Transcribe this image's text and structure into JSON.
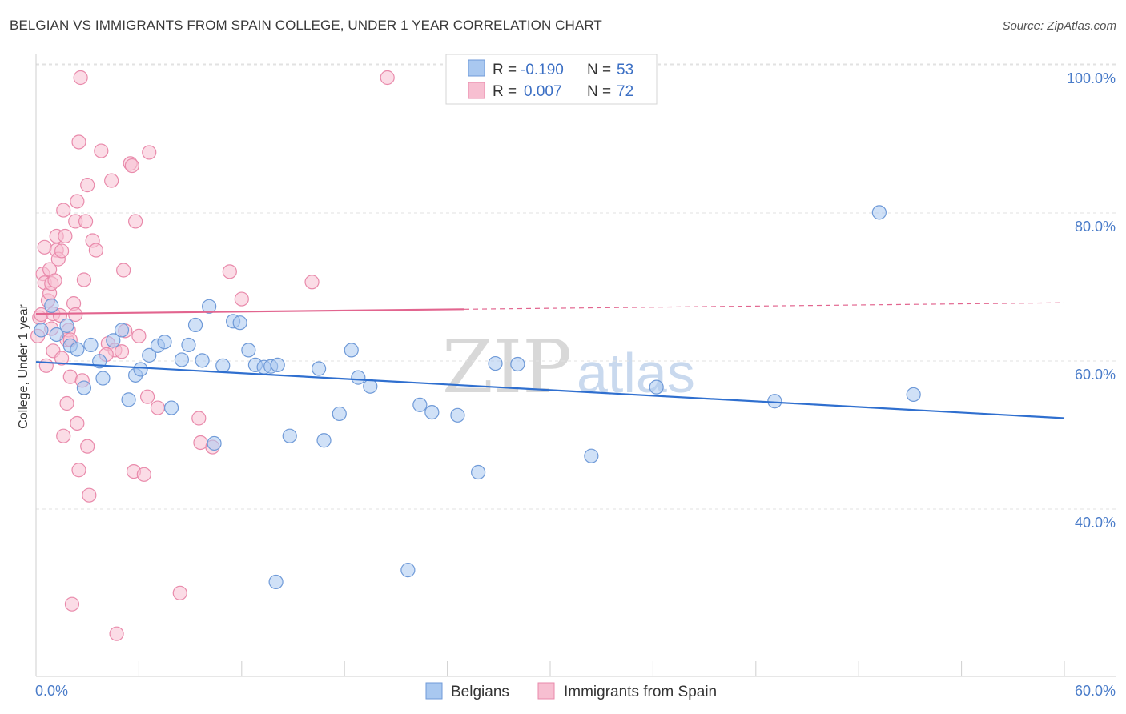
{
  "header": {
    "title": "BELGIAN VS IMMIGRANTS FROM SPAIN COLLEGE, UNDER 1 YEAR CORRELATION CHART",
    "source": "Source: ZipAtlas.com"
  },
  "watermark": {
    "zip": "ZIP",
    "atlas": "atlas"
  },
  "colors": {
    "belgians_fill": "#a9c8f0",
    "belgians_stroke": "#6f9ad8",
    "belgians_line": "#2f6fcf",
    "spain_fill": "#f7bfd1",
    "spain_stroke": "#e98aab",
    "spain_line": "#e2658f",
    "tick_label": "#4a7cc9",
    "grid": "#e2e2e2"
  },
  "legend": {
    "rows": [
      {
        "r_label": "R =",
        "r_value": "-0.190",
        "n_label": "N =",
        "n_value": "53"
      },
      {
        "r_label": "R =",
        "r_value": "0.007",
        "n_label": "N =",
        "n_value": "72"
      }
    ]
  },
  "chart_data": {
    "type": "scatter",
    "title": "BELGIAN VS IMMIGRANTS FROM SPAIN COLLEGE, UNDER 1 YEAR CORRELATION CHART",
    "xlabel": "",
    "ylabel": "College, Under 1 year",
    "xlim": [
      0,
      60
    ],
    "ylim": [
      20,
      104
    ],
    "x_tick_labels": [
      "0.0%",
      "60.0%"
    ],
    "y_ticks": [
      {
        "value": 100,
        "label": "100.0%"
      },
      {
        "value": 80,
        "label": "80.0%"
      },
      {
        "value": 60,
        "label": "60.0%"
      },
      {
        "value": 40,
        "label": "40.0%"
      }
    ],
    "series": [
      {
        "name": "Belgians",
        "r": -0.19,
        "n": 53,
        "trend": {
          "x": [
            0,
            60
          ],
          "y": [
            61.6,
            54.0
          ],
          "dashed_from": null
        },
        "points": [
          [
            0.3,
            65.9
          ],
          [
            0.9,
            69.2
          ],
          [
            1.2,
            65.3
          ],
          [
            1.8,
            66.5
          ],
          [
            2.0,
            63.8
          ],
          [
            2.4,
            63.3
          ],
          [
            2.8,
            58.1
          ],
          [
            3.2,
            63.9
          ],
          [
            3.7,
            61.7
          ],
          [
            3.9,
            59.4
          ],
          [
            4.5,
            64.5
          ],
          [
            5.0,
            65.9
          ],
          [
            5.4,
            56.5
          ],
          [
            5.8,
            59.8
          ],
          [
            6.1,
            60.6
          ],
          [
            6.6,
            62.5
          ],
          [
            7.1,
            63.8
          ],
          [
            7.5,
            64.3
          ],
          [
            7.9,
            55.4
          ],
          [
            8.5,
            61.9
          ],
          [
            8.9,
            63.9
          ],
          [
            9.3,
            66.6
          ],
          [
            9.7,
            61.8
          ],
          [
            10.1,
            69.1
          ],
          [
            10.4,
            50.6
          ],
          [
            10.9,
            61.1
          ],
          [
            11.5,
            67.1
          ],
          [
            11.9,
            66.9
          ],
          [
            12.4,
            63.2
          ],
          [
            12.8,
            61.2
          ],
          [
            13.3,
            60.9
          ],
          [
            13.7,
            61.0
          ],
          [
            14.1,
            61.2
          ],
          [
            14.0,
            31.9
          ],
          [
            14.8,
            51.6
          ],
          [
            16.5,
            60.7
          ],
          [
            16.8,
            51.0
          ],
          [
            17.7,
            54.6
          ],
          [
            18.4,
            63.2
          ],
          [
            18.8,
            59.5
          ],
          [
            19.5,
            58.3
          ],
          [
            21.7,
            33.5
          ],
          [
            22.4,
            55.8
          ],
          [
            23.1,
            54.8
          ],
          [
            24.6,
            54.4
          ],
          [
            25.8,
            46.7
          ],
          [
            26.8,
            61.4
          ],
          [
            28.1,
            61.3
          ],
          [
            32.4,
            48.9
          ],
          [
            36.2,
            58.2
          ],
          [
            43.1,
            56.3
          ],
          [
            49.2,
            81.8
          ],
          [
            51.2,
            57.2
          ]
        ]
      },
      {
        "name": "Immigrants from Spain",
        "r": 0.007,
        "n": 72,
        "trend": {
          "x": [
            0,
            60
          ],
          "y": [
            68.1,
            69.6
          ],
          "dashed_from": 25
        },
        "points": [
          [
            0.1,
            65.1
          ],
          [
            0.2,
            67.6
          ],
          [
            0.3,
            68.0
          ],
          [
            0.4,
            73.5
          ],
          [
            0.5,
            72.3
          ],
          [
            0.5,
            77.1
          ],
          [
            0.6,
            61.1
          ],
          [
            0.7,
            69.9
          ],
          [
            0.8,
            70.9
          ],
          [
            0.8,
            74.1
          ],
          [
            0.9,
            72.2
          ],
          [
            1.0,
            63.1
          ],
          [
            1.0,
            68.1
          ],
          [
            1.1,
            72.6
          ],
          [
            1.2,
            76.7
          ],
          [
            1.2,
            78.6
          ],
          [
            1.3,
            75.5
          ],
          [
            1.4,
            67.9
          ],
          [
            1.5,
            76.6
          ],
          [
            1.6,
            51.6
          ],
          [
            1.6,
            82.1
          ],
          [
            1.7,
            78.6
          ],
          [
            1.8,
            64.6
          ],
          [
            1.8,
            56.0
          ],
          [
            1.9,
            65.9
          ],
          [
            2.0,
            64.6
          ],
          [
            2.0,
            59.6
          ],
          [
            2.1,
            28.9
          ],
          [
            2.2,
            69.5
          ],
          [
            2.3,
            68.0
          ],
          [
            2.3,
            80.6
          ],
          [
            2.4,
            53.3
          ],
          [
            2.4,
            83.3
          ],
          [
            2.5,
            47.0
          ],
          [
            2.5,
            91.3
          ],
          [
            2.6,
            100.0
          ],
          [
            2.8,
            72.7
          ],
          [
            2.9,
            80.6
          ],
          [
            3.0,
            85.5
          ],
          [
            3.0,
            50.2
          ],
          [
            3.1,
            43.6
          ],
          [
            3.3,
            78.0
          ],
          [
            3.5,
            76.7
          ],
          [
            3.8,
            90.1
          ],
          [
            4.2,
            64.1
          ],
          [
            4.4,
            86.1
          ],
          [
            4.6,
            63.2
          ],
          [
            4.7,
            24.9
          ],
          [
            5.0,
            63.0
          ],
          [
            5.1,
            74.0
          ],
          [
            5.2,
            65.8
          ],
          [
            5.5,
            88.4
          ],
          [
            5.6,
            88.1
          ],
          [
            5.7,
            46.8
          ],
          [
            5.8,
            80.6
          ],
          [
            6.0,
            65.1
          ],
          [
            6.3,
            46.4
          ],
          [
            6.5,
            56.9
          ],
          [
            6.6,
            89.9
          ],
          [
            7.1,
            55.4
          ],
          [
            8.4,
            30.4
          ],
          [
            9.5,
            54.0
          ],
          [
            9.6,
            50.7
          ],
          [
            10.3,
            50.1
          ],
          [
            11.3,
            73.8
          ],
          [
            12.0,
            70.1
          ],
          [
            16.1,
            72.4
          ],
          [
            20.5,
            100.0
          ],
          [
            0.9,
            66.1
          ],
          [
            1.5,
            62.1
          ],
          [
            4.1,
            62.6
          ],
          [
            2.7,
            59.1
          ]
        ]
      }
    ]
  },
  "bottom_legend": {
    "items": [
      "Belgians",
      "Immigrants from Spain"
    ]
  }
}
